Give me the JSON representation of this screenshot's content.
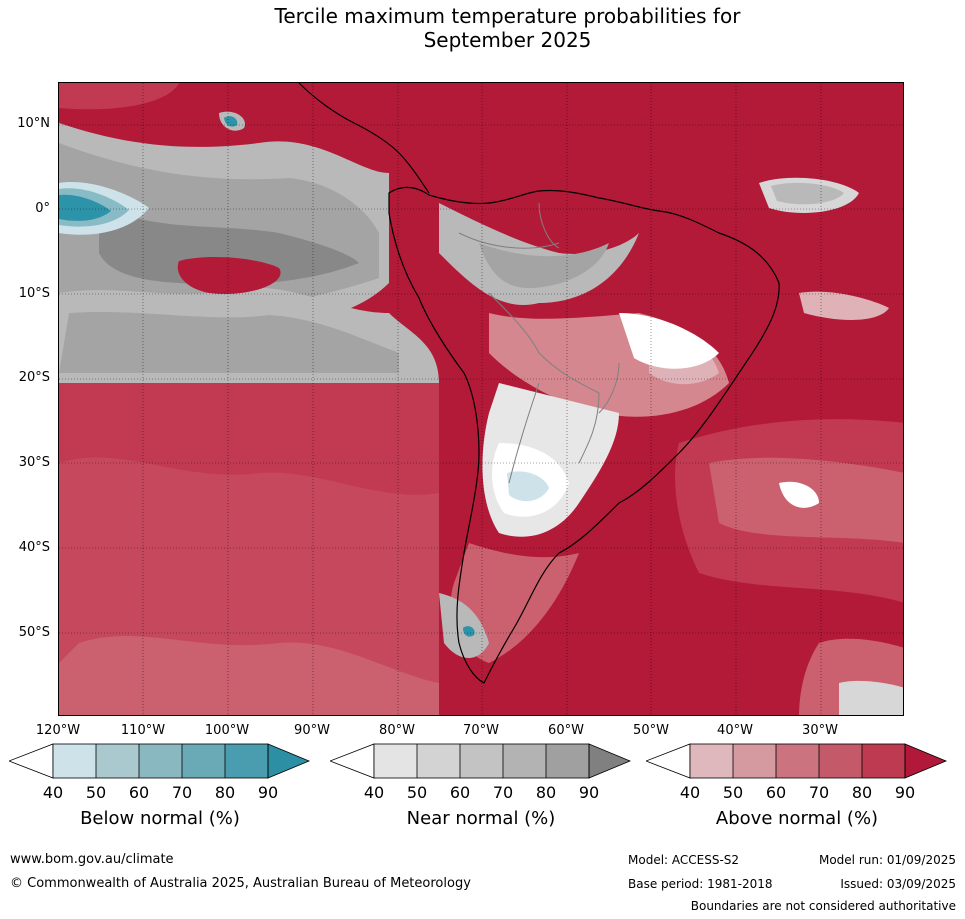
{
  "title": {
    "line1": "Tercile maximum temperature probabilities for",
    "line2": "September 2025"
  },
  "map": {
    "lat_labels": [
      "10°N",
      "0°",
      "10°S",
      "20°S",
      "30°S",
      "40°S",
      "50°S"
    ],
    "lon_labels": [
      "120°W",
      "110°W",
      "100°W",
      "90°W",
      "80°W",
      "70°W",
      "60°W",
      "50°W",
      "40°W",
      "30°W"
    ],
    "dominant_color": "#b21a38",
    "colors": {
      "above_90": "#b21a38",
      "above_80": "#c13a52",
      "above_70": "#cb606f",
      "above_60": "#d5878f",
      "above_50": "#deb2b6",
      "near_90": "#888888",
      "near_80": "#a4a4a4",
      "near_70": "#b9b9b9",
      "near_50": "#d7d7d7",
      "near_40": "#e7e7e7",
      "below_90": "#2d93a9",
      "below_70": "#88bbc5",
      "below_50": "#cde3e9"
    }
  },
  "colorbars": [
    {
      "title": "Below normal (%)",
      "ticks": [
        "40",
        "50",
        "60",
        "70",
        "80",
        "90"
      ],
      "colors": [
        "#ffffff",
        "#cde3e9",
        "#a9c9ce",
        "#8ab8c1",
        "#6aa9b6",
        "#4a9dae",
        "#2d8fa4"
      ]
    },
    {
      "title": "Near normal (%)",
      "ticks": [
        "40",
        "50",
        "60",
        "70",
        "80",
        "90"
      ],
      "colors": [
        "#ffffff",
        "#e4e4e4",
        "#d3d3d3",
        "#c3c3c3",
        "#b3b3b3",
        "#a0a0a0",
        "#808080"
      ]
    },
    {
      "title": "Above normal (%)",
      "ticks": [
        "40",
        "50",
        "60",
        "70",
        "80",
        "90"
      ],
      "colors": [
        "#ffffff",
        "#deb8bc",
        "#d59aa0",
        "#cb7480",
        "#c45a69",
        "#bd3a50",
        "#b2183a"
      ]
    }
  ],
  "footer": {
    "url": "www.bom.gov.au/climate",
    "copyright": "© Commonwealth of Australia 2025, Australian Bureau of Meteorology",
    "model": "Model: ACCESS-S2",
    "base_period": "Base period: 1981-2018",
    "model_run": "Model run: 01/09/2025",
    "issued": "Issued: 03/09/2025",
    "disclaimer": "Boundaries are not considered authoritative"
  }
}
